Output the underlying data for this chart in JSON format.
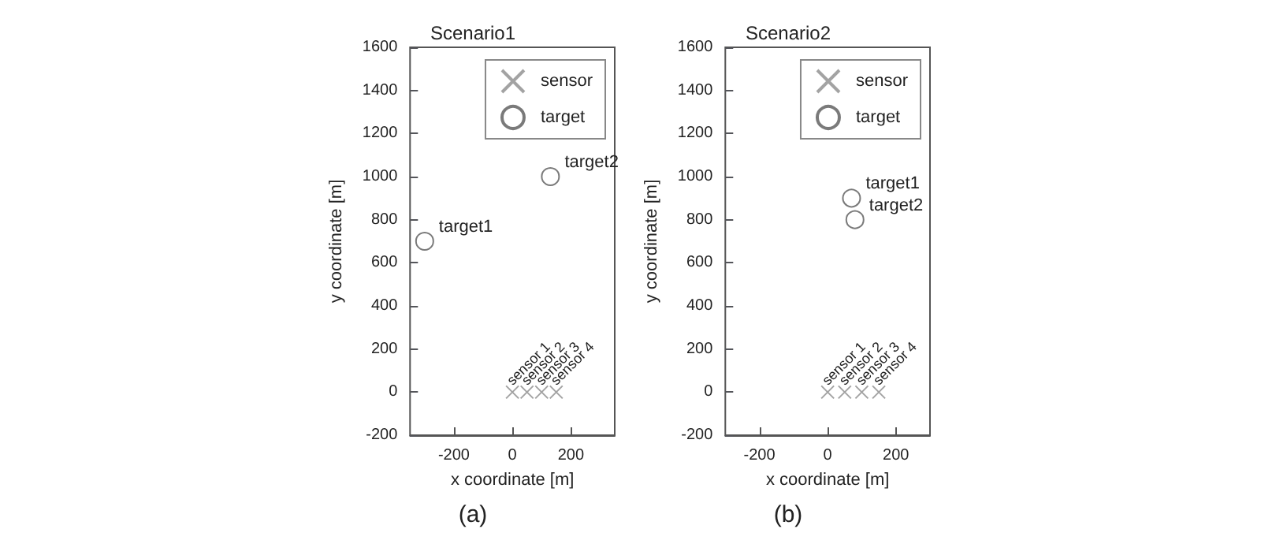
{
  "chart_data": [
    {
      "type": "scatter",
      "title": "Scenario1",
      "xlabel": "x coordinate [m]",
      "ylabel": "y coordinate [m]",
      "xlim": [
        -350,
        350
      ],
      "xticks": [
        -200,
        0,
        200
      ],
      "ylim": [
        -200,
        1600
      ],
      "yticks": [
        -200,
        0,
        200,
        400,
        600,
        800,
        1000,
        1200,
        1400,
        1600
      ],
      "legend": "top right",
      "grid": false,
      "series": [
        {
          "name": "sensor",
          "color": "#8c8c8c",
          "marker": "cross",
          "x": [
            0,
            50,
            100,
            150
          ],
          "values": [
            0,
            0,
            0,
            0
          ]
        },
        {
          "name": "target",
          "color": "#595959",
          "marker": "circle",
          "x": [
            -300,
            130
          ],
          "values": [
            700,
            1000
          ]
        }
      ],
      "annotations": [
        {
          "text": "sensor 1",
          "x": 0,
          "y": 0
        },
        {
          "text": "sensor 2",
          "x": 50,
          "y": 0
        },
        {
          "text": "sensor 3",
          "x": 100,
          "y": 0
        },
        {
          "text": "sensor 4",
          "x": 150,
          "y": 0
        },
        {
          "text": "target1",
          "x": -300,
          "y": 700
        },
        {
          "text": "target2",
          "x": 130,
          "y": 1000
        },
        "(a)"
      ]
    },
    {
      "type": "scatter",
      "title": "Scenario2",
      "xlabel": "x coordinate [m]",
      "ylabel": "y coordinate [m]",
      "xlim": [
        -300,
        300
      ],
      "xticks": [
        -200,
        0,
        200
      ],
      "ylim": [
        -200,
        1600
      ],
      "yticks": [
        -200,
        0,
        200,
        400,
        600,
        800,
        1000,
        1200,
        1400,
        1600
      ],
      "legend": "top right",
      "grid": false,
      "series": [
        {
          "name": "sensor",
          "color": "#8c8c8c",
          "marker": "cross",
          "x": [
            0,
            50,
            100,
            150
          ],
          "values": [
            0,
            0,
            0,
            0
          ]
        },
        {
          "name": "target",
          "color": "#595959",
          "marker": "circle",
          "x": [
            70,
            80
          ],
          "values": [
            900,
            800
          ]
        }
      ],
      "annotations": [
        {
          "text": "sensor 1",
          "x": 0,
          "y": 0
        },
        {
          "text": "sensor 2",
          "x": 50,
          "y": 0
        },
        {
          "text": "sensor 3",
          "x": 100,
          "y": 0
        },
        {
          "text": "sensor 4",
          "x": 150,
          "y": 0
        },
        {
          "text": "target1",
          "x": 70,
          "y": 900
        },
        {
          "text": "target2",
          "x": 80,
          "y": 800
        },
        "(b)"
      ]
    }
  ]
}
